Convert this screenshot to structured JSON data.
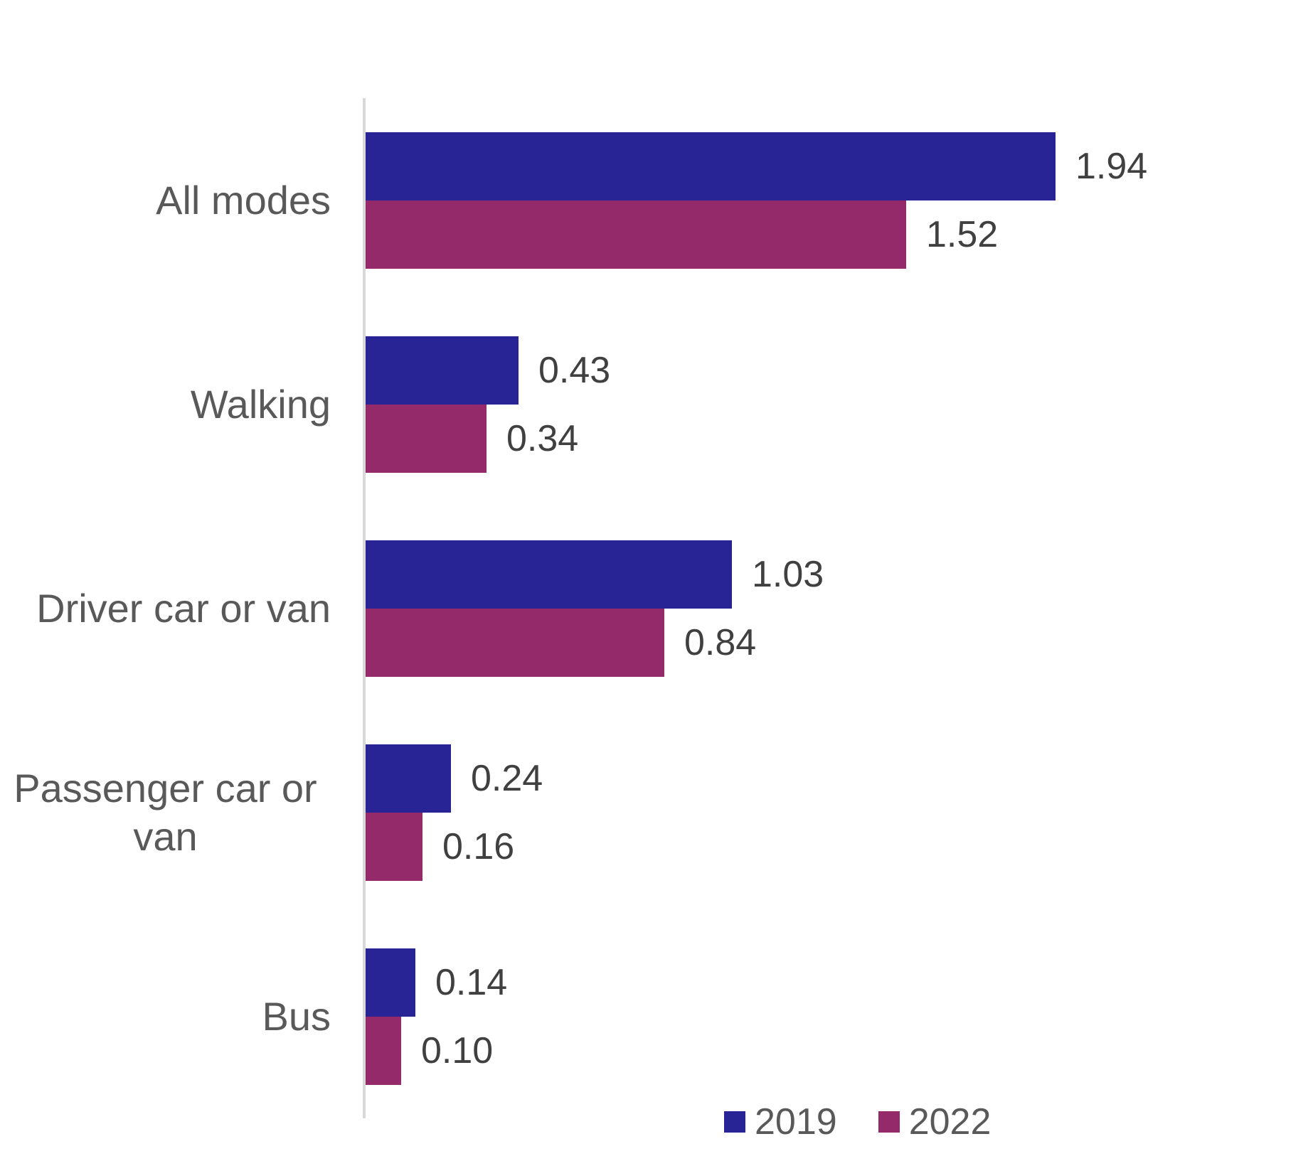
{
  "chart_data": {
    "type": "bar",
    "orientation": "horizontal",
    "categories": [
      "All modes",
      "Walking",
      "Driver car or van",
      "Passenger car or van",
      "Bus"
    ],
    "series": [
      {
        "name": "2019",
        "color": "#282496",
        "values": [
          1.94,
          0.43,
          1.03,
          0.24,
          0.14
        ],
        "labels": [
          "1.94",
          "0.43",
          "1.03",
          "0.24",
          "0.14"
        ]
      },
      {
        "name": "2022",
        "color": "#942A6A",
        "values": [
          1.52,
          0.34,
          0.84,
          0.16,
          0.1
        ],
        "labels": [
          "1.52",
          "0.34",
          "0.84",
          "0.16",
          "0.10"
        ]
      }
    ],
    "xlim": [
      0,
      2.0
    ],
    "grid": false,
    "legend_position": "bottom",
    "axis_color": "#D9D9D9",
    "category_label_color": "#595959",
    "value_label_color": "#404040"
  }
}
